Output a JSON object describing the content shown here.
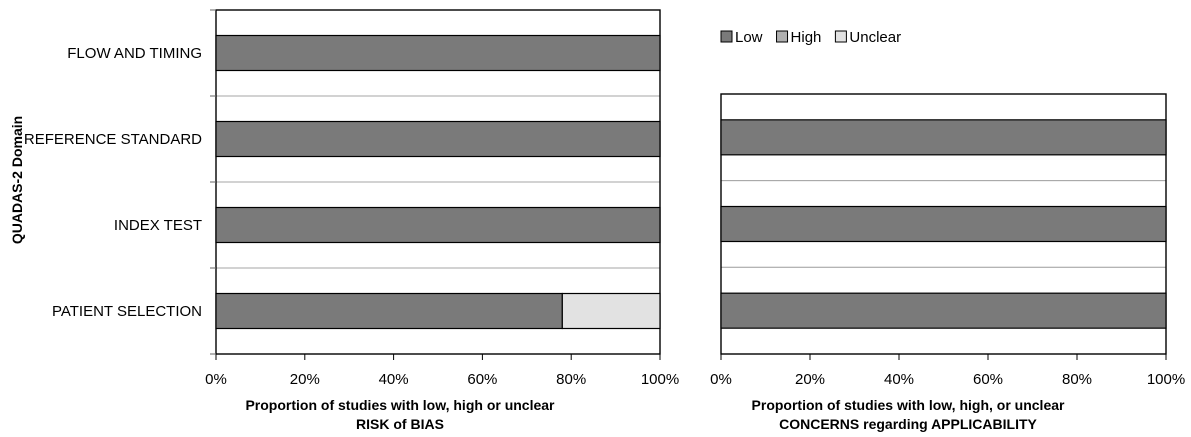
{
  "chart_data": [
    {
      "type": "bar",
      "orientation": "horizontal",
      "stacked": true,
      "panel": "risk-of-bias",
      "ylabel": "QUADAS-2 Domain",
      "xlabel_line1": "Proportion of studies with low, high or unclear",
      "xlabel_line2": "RISK of BIAS",
      "xlim": [
        0,
        100
      ],
      "xticks": [
        "0%",
        "20%",
        "40%",
        "60%",
        "80%",
        "100%"
      ],
      "categories": [
        "FLOW AND TIMING",
        "REFERENCE STANDARD",
        "INDEX TEST",
        "PATIENT SELECTION"
      ],
      "series": [
        {
          "name": "Low",
          "values": [
            100,
            100,
            100,
            78
          ]
        },
        {
          "name": "High",
          "values": [
            0,
            0,
            0,
            0
          ]
        },
        {
          "name": "Unclear",
          "values": [
            0,
            0,
            0,
            22
          ]
        }
      ],
      "grid": false
    },
    {
      "type": "bar",
      "orientation": "horizontal",
      "stacked": true,
      "panel": "applicability",
      "xlabel_line1": "Proportion of studies with low, high, or unclear",
      "xlabel_line2": "CONCERNS regarding APPLICABILITY",
      "xlim": [
        0,
        100
      ],
      "xticks": [
        "0%",
        "20%",
        "40%",
        "60%",
        "80%",
        "100%"
      ],
      "categories": [
        "REFERENCE STANDARD",
        "INDEX TEST",
        "PATIENT SELECTION"
      ],
      "series": [
        {
          "name": "Low",
          "values": [
            100,
            100,
            100
          ]
        },
        {
          "name": "High",
          "values": [
            0,
            0,
            0
          ]
        },
        {
          "name": "Unclear",
          "values": [
            0,
            0,
            0
          ]
        }
      ],
      "grid": false
    }
  ],
  "legend": {
    "placement": "top-right",
    "items": [
      {
        "label": "Low",
        "color": "#7a7a7a"
      },
      {
        "label": "High",
        "color": "#b0b0b0"
      },
      {
        "label": "Unclear",
        "color": "#e2e2e2"
      }
    ]
  },
  "colors": {
    "Low": "#7a7a7a",
    "High": "#b0b0b0",
    "Unclear": "#e2e2e2",
    "axis": "#666666",
    "band_line": "#a6a6a6"
  }
}
